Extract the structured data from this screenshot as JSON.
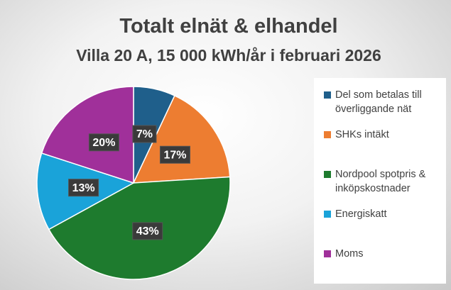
{
  "chart_data": {
    "type": "pie",
    "title": "Totalt elnät & elhandel",
    "subtitle": "Villa 20 A, 15 000 kWh/år i februari 2026",
    "categories": [
      "Del som betalas till överliggande nät",
      "SHKs intäkt",
      "Nordpool spotpris & inköpskostnader",
      "Energiskatt",
      "Moms"
    ],
    "values": [
      7,
      17,
      43,
      13,
      20
    ],
    "value_labels": [
      "7%",
      "17%",
      "43%",
      "13%",
      "20%"
    ],
    "colors": [
      "#1f5f8b",
      "#ed7d31",
      "#1e7b2e",
      "#1aa3d9",
      "#a0309a"
    ],
    "legend": "right"
  }
}
